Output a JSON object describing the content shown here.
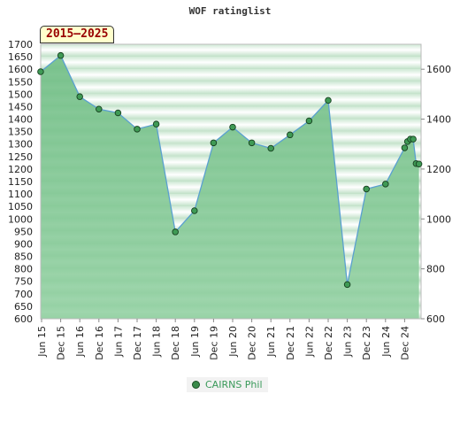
{
  "chart_data": {
    "type": "area",
    "title": "WOF ratinglist",
    "range_label": "2015–2025",
    "y_left": {
      "min": 600,
      "max": 1700,
      "step": 50
    },
    "y_right": {
      "min": 600,
      "max": 1700,
      "ticks": [
        600,
        800,
        1000,
        1200,
        1400,
        1600
      ]
    },
    "x_tick_labels": [
      "Jun 15",
      "Dec 15",
      "Jun 16",
      "Dec 16",
      "Jun 17",
      "Dec 17",
      "Jun 18",
      "Dec 18",
      "Jun 19",
      "Dec 19",
      "Jun 20",
      "Dec 20",
      "Jun 21",
      "Dec 21",
      "Jun 22",
      "Dec 22",
      "Jun 23",
      "Dec 23",
      "Jun 24",
      "Dec 24"
    ],
    "grid": true,
    "legend_position": "bottom-center",
    "series": [
      {
        "name": "CAIRNS Phil",
        "color": "#5aa0d0",
        "fill": "#7cc48f",
        "points": [
          {
            "x": -0.05,
            "y": 1590
          },
          {
            "x": 1,
            "y": 1655
          },
          {
            "x": 2,
            "y": 1490
          },
          {
            "x": 3,
            "y": 1440
          },
          {
            "x": 4,
            "y": 1425
          },
          {
            "x": 5,
            "y": 1360
          },
          {
            "x": 6,
            "y": 1380
          },
          {
            "x": 7,
            "y": 948
          },
          {
            "x": 8,
            "y": 1033
          },
          {
            "x": 9,
            "y": 1305
          },
          {
            "x": 10,
            "y": 1368
          },
          {
            "x": 11,
            "y": 1305
          },
          {
            "x": 12,
            "y": 1283
          },
          {
            "x": 13,
            "y": 1337
          },
          {
            "x": 14,
            "y": 1393
          },
          {
            "x": 15,
            "y": 1475
          },
          {
            "x": 16,
            "y": 737
          },
          {
            "x": 17,
            "y": 1120
          },
          {
            "x": 18,
            "y": 1140
          },
          {
            "x": 19,
            "y": 1285
          },
          {
            "x": 19.15,
            "y": 1310
          },
          {
            "x": 19.3,
            "y": 1320
          },
          {
            "x": 19.45,
            "y": 1320
          },
          {
            "x": 19.6,
            "y": 1222
          },
          {
            "x": 19.75,
            "y": 1220
          }
        ]
      }
    ]
  }
}
